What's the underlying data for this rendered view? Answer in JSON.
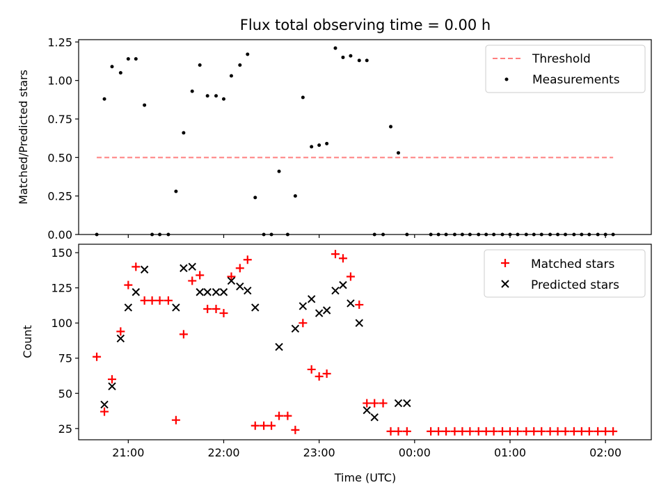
{
  "chart_data": [
    {
      "type": "scatter",
      "title": "Flux total observing time = 0.00 h",
      "xlabel": "",
      "ylabel": "Matched/Predicted stars",
      "xlim": [
        20.48,
        26.48
      ],
      "ylim": [
        0,
        1.265
      ],
      "x_tick_labels": [
        "21:00",
        "22:00",
        "23:00",
        "00:00",
        "01:00",
        "02:00"
      ],
      "x_ticks": [
        21,
        22,
        23,
        24,
        25,
        26
      ],
      "y_ticks": [
        0.0,
        0.25,
        0.5,
        0.75,
        1.0,
        1.25
      ],
      "y_tick_labels": [
        "0.00",
        "0.25",
        "0.50",
        "0.75",
        "1.00",
        "1.25"
      ],
      "legend": "top-right",
      "series": [
        {
          "name": "Threshold",
          "kind": "line",
          "color": "#ff7f7f",
          "dash": "dashed",
          "x": [
            20.67,
            26.08
          ],
          "y": [
            0.5,
            0.5
          ]
        },
        {
          "name": "Measurements",
          "kind": "scatter",
          "marker": "dot",
          "color": "#000000",
          "x": [
            20.67,
            20.75,
            20.83,
            20.92,
            21.0,
            21.08,
            21.17,
            21.25,
            21.33,
            21.42,
            21.5,
            21.58,
            21.67,
            21.75,
            21.83,
            21.92,
            22.0,
            22.08,
            22.17,
            22.25,
            22.33,
            22.42,
            22.5,
            22.58,
            22.67,
            22.75,
            22.83,
            22.92,
            23.0,
            23.08,
            23.17,
            23.25,
            23.33,
            23.42,
            23.5,
            23.58,
            23.67,
            23.75,
            23.83,
            23.92,
            24.17,
            24.25,
            24.33,
            24.42,
            24.5,
            24.58,
            24.67,
            24.75,
            24.83,
            24.92,
            25.0,
            25.08,
            25.17,
            25.25,
            25.33,
            25.42,
            25.5,
            25.58,
            25.67,
            25.75,
            25.83,
            25.92,
            26.0,
            26.08
          ],
          "y": [
            0.0,
            0.88,
            1.09,
            1.05,
            1.14,
            1.14,
            0.84,
            0.0,
            0.0,
            0.0,
            0.28,
            0.66,
            0.93,
            1.1,
            0.9,
            0.9,
            0.88,
            1.03,
            1.1,
            1.17,
            0.24,
            0.0,
            0.0,
            0.41,
            0.0,
            0.25,
            0.89,
            0.57,
            0.58,
            0.59,
            1.21,
            1.15,
            1.16,
            1.13,
            1.13,
            0.0,
            0.0,
            0.7,
            0.53,
            0.0,
            0.0,
            0.0,
            0.0,
            0.0,
            0.0,
            0.0,
            0.0,
            0.0,
            0.0,
            0.0,
            0.0,
            0.0,
            0.0,
            0.0,
            0.0,
            0.0,
            0.0,
            0.0,
            0.0,
            0.0,
            0.0,
            0.0,
            0.0,
            0.0
          ]
        }
      ]
    },
    {
      "type": "scatter",
      "title": "",
      "xlabel": "Time (UTC)",
      "ylabel": "Count",
      "xlim": [
        20.48,
        26.48
      ],
      "ylim": [
        17,
        156
      ],
      "x_tick_labels": [
        "21:00",
        "22:00",
        "23:00",
        "00:00",
        "01:00",
        "02:00"
      ],
      "x_ticks": [
        21,
        22,
        23,
        24,
        25,
        26
      ],
      "y_ticks": [
        25,
        50,
        75,
        100,
        125,
        150
      ],
      "y_tick_labels": [
        "25",
        "50",
        "75",
        "100",
        "125",
        "150"
      ],
      "legend": "top-right",
      "series": [
        {
          "name": "Matched stars",
          "kind": "scatter",
          "marker": "plus",
          "color": "#ff0000",
          "x": [
            20.67,
            20.75,
            20.83,
            20.92,
            21.0,
            21.08,
            21.17,
            21.25,
            21.33,
            21.42,
            21.5,
            21.58,
            21.67,
            21.75,
            21.83,
            21.92,
            22.0,
            22.08,
            22.17,
            22.25,
            22.33,
            22.42,
            22.5,
            22.58,
            22.67,
            22.75,
            22.83,
            22.92,
            23.0,
            23.08,
            23.17,
            23.25,
            23.33,
            23.42,
            23.5,
            23.58,
            23.67,
            23.75,
            23.83,
            23.92,
            24.17,
            24.25,
            24.33,
            24.42,
            24.5,
            24.58,
            24.67,
            24.75,
            24.83,
            24.92,
            25.0,
            25.08,
            25.17,
            25.25,
            25.33,
            25.42,
            25.5,
            25.58,
            25.67,
            25.75,
            25.83,
            25.92,
            26.0,
            26.08
          ],
          "y": [
            76,
            37,
            60,
            94,
            127,
            140,
            116,
            116,
            116,
            116,
            31,
            92,
            130,
            134,
            110,
            110,
            107,
            133,
            139,
            145,
            27,
            27,
            27,
            34,
            34,
            24,
            100,
            67,
            62,
            64,
            149,
            146,
            133,
            113,
            43,
            43,
            43,
            23,
            23,
            23,
            23,
            23,
            23,
            23,
            23,
            23,
            23,
            23,
            23,
            23,
            23,
            23,
            23,
            23,
            23,
            23,
            23,
            23,
            23,
            23,
            23,
            23,
            23,
            23
          ]
        },
        {
          "name": "Predicted stars",
          "kind": "scatter",
          "marker": "x",
          "color": "#000000",
          "x": [
            20.75,
            20.83,
            20.92,
            21.0,
            21.08,
            21.17,
            21.5,
            21.58,
            21.67,
            21.75,
            21.83,
            21.92,
            22.0,
            22.08,
            22.17,
            22.25,
            22.33,
            22.58,
            22.75,
            22.83,
            22.92,
            23.0,
            23.08,
            23.17,
            23.25,
            23.33,
            23.42,
            23.5,
            23.58,
            23.83,
            23.92
          ],
          "y": [
            42,
            55,
            89,
            111,
            122,
            138,
            111,
            139,
            140,
            122,
            122,
            122,
            122,
            130,
            126,
            123,
            111,
            83,
            96,
            112,
            117,
            107,
            109,
            123,
            127,
            114,
            100,
            38,
            33,
            43,
            43
          ]
        }
      ]
    }
  ]
}
